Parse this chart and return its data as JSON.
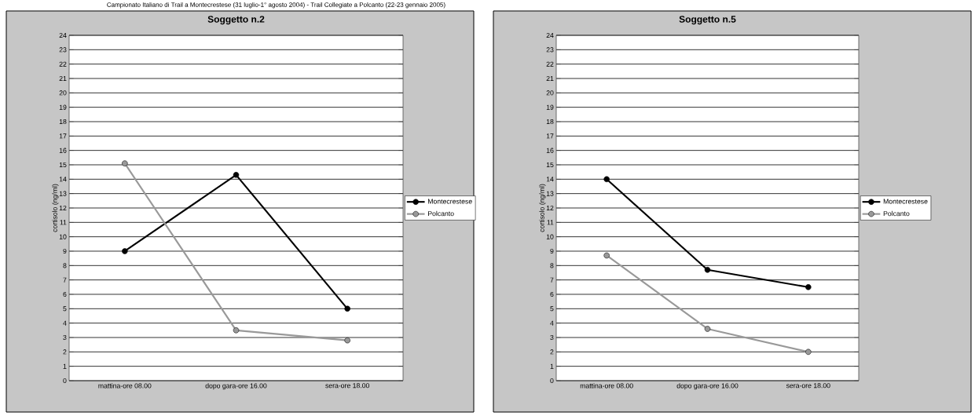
{
  "chart_data": [
    {
      "type": "line",
      "title": "Soggetto n.2",
      "ylabel": "cortisolo (ng/ml)",
      "annotations": [
        "Campionato Italiano di Trail a Montecrestese (31 luglio-1° agosto 2004) - Trail Collegiate a Polcanto (22-23 gennaio 2005)"
      ],
      "categories": [
        "mattina-ore 08.00",
        "dopo gara-ore 16.00",
        "sera-ore 18.00"
      ],
      "series": [
        {
          "name": "Montecrestese",
          "color": "#000000",
          "values": [
            9,
            14.3,
            5
          ]
        },
        {
          "name": "Polcanto",
          "color": "#999999",
          "values": [
            15.1,
            3.5,
            2.8
          ]
        }
      ],
      "ylim": [
        0,
        24
      ],
      "yticks": [
        0,
        1,
        2,
        3,
        4,
        5,
        6,
        7,
        8,
        9,
        10,
        11,
        12,
        13,
        14,
        15,
        16,
        17,
        18,
        19,
        20,
        21,
        22,
        23,
        24
      ],
      "grid": "y",
      "legend": "right",
      "marker": "circle",
      "line_style": "solid"
    },
    {
      "type": "line",
      "title": "Soggetto n.5",
      "ylabel": "cortisolo (ng/ml)",
      "categories": [
        "mattina-ore 08.00",
        "dopo gara-ore 16.00",
        "sera-ore 18.00"
      ],
      "series": [
        {
          "name": "Montecrestese",
          "color": "#000000",
          "values": [
            14,
            7.7,
            6.5
          ]
        },
        {
          "name": "Polcanto",
          "color": "#999999",
          "values": [
            8.7,
            3.6,
            2
          ]
        }
      ],
      "ylim": [
        0,
        24
      ],
      "yticks": [
        0,
        1,
        2,
        3,
        4,
        5,
        6,
        7,
        8,
        9,
        10,
        11,
        12,
        13,
        14,
        15,
        16,
        17,
        18,
        19,
        20,
        21,
        22,
        23,
        24
      ],
      "grid": "y",
      "legend": "right",
      "marker": "circle",
      "line_style": "solid"
    }
  ]
}
